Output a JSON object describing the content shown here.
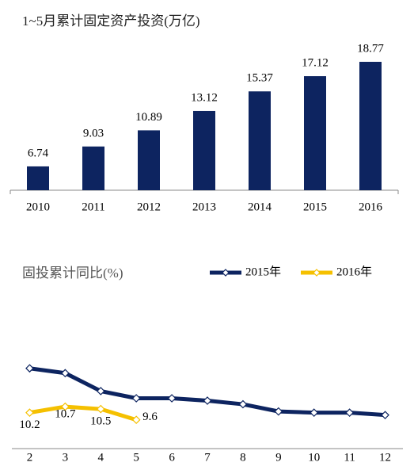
{
  "chart_data": [
    {
      "type": "bar",
      "title": "1~5月累计固定资产投资(万亿)",
      "categories": [
        "2010",
        "2011",
        "2012",
        "2013",
        "2014",
        "2015",
        "2016"
      ],
      "values": [
        6.74,
        9.03,
        10.89,
        13.12,
        15.37,
        17.12,
        18.77
      ],
      "color": "#0d2460",
      "ylim": [
        4,
        20
      ]
    },
    {
      "type": "line",
      "title": "固投累计同比(%)",
      "categories": [
        "2",
        "3",
        "4",
        "5",
        "6",
        "7",
        "8",
        "9",
        "10",
        "11",
        "12"
      ],
      "series": [
        {
          "name": "2015年",
          "color": "#0d2460",
          "values": [
            13.9,
            13.5,
            12.0,
            11.4,
            11.4,
            11.2,
            10.9,
            10.3,
            10.2,
            10.2,
            10.0
          ]
        },
        {
          "name": "2016年",
          "color": "#f5c000",
          "values": [
            10.2,
            10.7,
            10.5,
            9.6,
            null,
            null,
            null,
            null,
            null,
            null,
            null
          ]
        }
      ],
      "ylim": [
        7,
        16
      ],
      "legend": "top-right"
    }
  ]
}
